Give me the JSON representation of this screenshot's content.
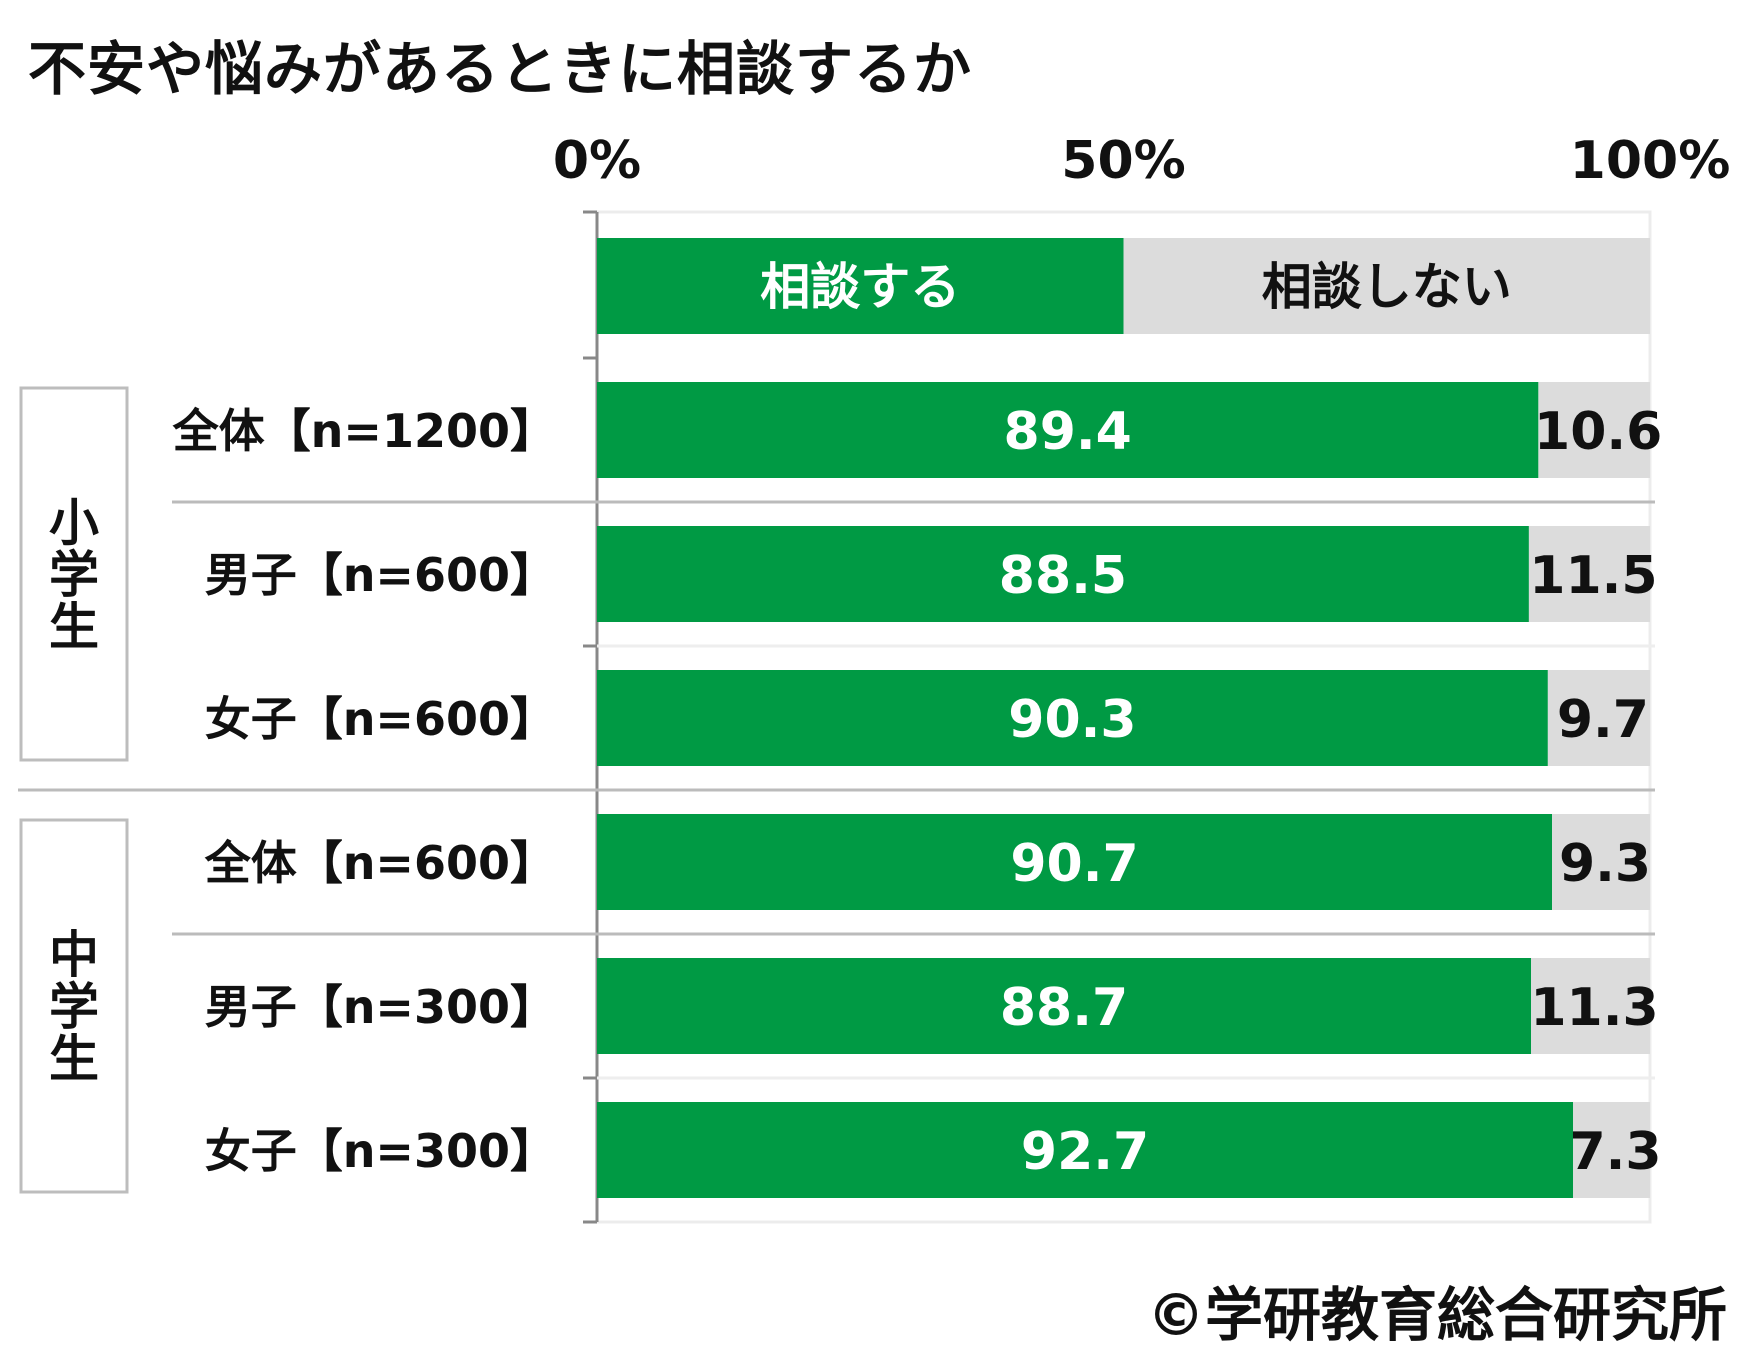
{
  "title": "不安や悩みがあるときに相談するか",
  "credit": "©学研教育総合研究所",
  "chart_data": {
    "type": "bar",
    "orientation": "horizontal",
    "stacked_percent": true,
    "xlim": [
      0,
      100
    ],
    "x_ticks": [
      "0%",
      "50%",
      "100%"
    ],
    "legend": [
      "相談する",
      "相談しない"
    ],
    "legend_position": "top",
    "legend_values": [
      50,
      50
    ],
    "colors": {
      "yes": "#009a44",
      "no": "#dcdcdc"
    },
    "groups": [
      {
        "name": "小学生",
        "rows": [
          0,
          1,
          2
        ]
      },
      {
        "name": "中学生",
        "rows": [
          3,
          4,
          5
        ]
      }
    ],
    "categories": [
      "全体【n=1200】",
      "男子【n=600】",
      "女子【n=600】",
      "全体【n=600】",
      "男子【n=300】",
      "女子【n=300】"
    ],
    "series": [
      {
        "name": "相談する",
        "values": [
          89.4,
          88.5,
          90.3,
          90.7,
          88.7,
          92.7
        ]
      },
      {
        "name": "相談しない",
        "values": [
          10.6,
          11.5,
          9.7,
          9.3,
          11.3,
          7.3
        ]
      }
    ]
  }
}
